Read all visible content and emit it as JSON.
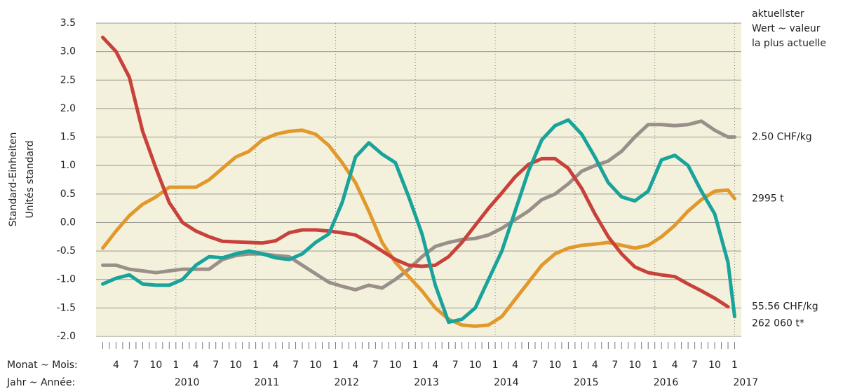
{
  "chart_data": {
    "type": "line",
    "y_axis_label": [
      "Standard-Einheiten",
      "Unités standard"
    ],
    "annotation": [
      "aktuellster",
      "Wert ~ valeur",
      "la plus actuelle"
    ],
    "x_row_labels": [
      "Monat ~ Mois:",
      "Jahr ~ Année:"
    ],
    "ylim": [
      -2.0,
      3.5
    ],
    "yticks": [
      {
        "value": -2,
        "label": "-2.0"
      },
      -1.5,
      {
        "value": -1,
        "label": "-1.0"
      },
      -0.5,
      {
        "value": 0,
        "label": "0.0"
      },
      0.5,
      {
        "value": 1,
        "label": "1.0"
      },
      1.5,
      {
        "value": 2,
        "label": "2.0"
      },
      2.5,
      {
        "value": 3,
        "label": "3.0"
      },
      3.5
    ],
    "grid": true,
    "xlim": [
      "2009-01",
      "2017-02"
    ],
    "xticks": [
      {
        "value": "2009-04",
        "label": "4"
      },
      {
        "value": "2009-07",
        "label": "7"
      },
      {
        "value": "2009-10",
        "label": "10"
      },
      {
        "value": "2010-01",
        "label": "1"
      },
      {
        "value": "2010-04",
        "label": "4"
      },
      {
        "value": "2010-07",
        "label": "7"
      },
      {
        "value": "2010-10",
        "label": "10"
      },
      {
        "value": "2011-01",
        "label": "1"
      },
      {
        "value": "2011-04",
        "label": "4"
      },
      {
        "value": "2011-07",
        "label": "7"
      },
      {
        "value": "2011-10",
        "label": "10"
      },
      {
        "value": "2012-01",
        "label": "1"
      },
      {
        "value": "2012-04",
        "label": "4"
      },
      {
        "value": "2012-07",
        "label": "7"
      },
      {
        "value": "2012-10",
        "label": "10"
      },
      {
        "value": "2013-01",
        "label": "1"
      },
      {
        "value": "2013-04",
        "label": "4"
      },
      {
        "value": "2013-07",
        "label": "7"
      },
      {
        "value": "2013-10",
        "label": "10"
      },
      {
        "value": "2014-01",
        "label": "1"
      },
      {
        "value": "2014-04",
        "label": "4"
      },
      {
        "value": "2014-07",
        "label": "7"
      },
      {
        "value": "2014-10",
        "label": "10"
      },
      {
        "value": "2015-01",
        "label": "1"
      },
      {
        "value": "2015-04",
        "label": "4"
      },
      {
        "value": "2015-07",
        "label": "7"
      },
      {
        "value": "2015-10",
        "label": "10"
      },
      {
        "value": "2016-01",
        "label": "1"
      },
      {
        "value": "2016-04",
        "label": "4"
      },
      {
        "value": "2016-07",
        "label": "7"
      },
      {
        "value": "2016-10",
        "label": "10"
      },
      {
        "value": "2017-01",
        "label": "1"
      }
    ],
    "year_ticks": [
      {
        "value": "2010-01",
        "label": "2010"
      },
      {
        "value": "2011-01",
        "label": "2011"
      },
      {
        "value": "2012-01",
        "label": "2012"
      },
      {
        "value": "2013-01",
        "label": "2013"
      },
      {
        "value": "2014-01",
        "label": "2014"
      },
      {
        "value": "2015-01",
        "label": "2015"
      },
      {
        "value": "2016-01",
        "label": "2016"
      },
      {
        "value": "2017-01",
        "label": "2017"
      }
    ],
    "x": [
      "2009-02",
      "2009-04",
      "2009-06",
      "2009-08",
      "2009-10",
      "2009-12",
      "2010-02",
      "2010-04",
      "2010-06",
      "2010-08",
      "2010-10",
      "2010-12",
      "2011-02",
      "2011-04",
      "2011-06",
      "2011-08",
      "2011-10",
      "2011-12",
      "2012-02",
      "2012-04",
      "2012-06",
      "2012-08",
      "2012-10",
      "2012-12",
      "2013-02",
      "2013-04",
      "2013-06",
      "2013-08",
      "2013-10",
      "2013-12",
      "2014-02",
      "2014-04",
      "2014-06",
      "2014-08",
      "2014-10",
      "2014-12",
      "2015-02",
      "2015-04",
      "2015-06",
      "2015-08",
      "2015-10",
      "2015-12",
      "2016-02",
      "2016-04",
      "2016-06",
      "2016-08",
      "2016-10",
      "2016-12",
      "2017-01"
    ],
    "series": [
      {
        "color": "#9a8f89",
        "end_label": "2.50 CHF/kg",
        "values": [
          -0.75,
          -0.75,
          -0.82,
          -0.85,
          -0.88,
          -0.85,
          -0.82,
          -0.82,
          -0.82,
          -0.65,
          -0.58,
          -0.55,
          -0.55,
          -0.58,
          -0.6,
          -0.75,
          -0.9,
          -1.05,
          -1.12,
          -1.18,
          -1.1,
          -1.15,
          -1.0,
          -0.82,
          -0.6,
          -0.42,
          -0.35,
          -0.3,
          -0.28,
          -0.22,
          -0.1,
          0.05,
          0.2,
          0.4,
          0.5,
          0.68,
          0.9,
          1.0,
          1.08,
          1.25,
          1.5,
          1.72,
          1.72,
          1.7,
          1.72,
          1.78,
          1.62,
          1.5,
          1.5
        ]
      },
      {
        "color": "#e2982a",
        "end_label": "2995 t",
        "values": [
          -0.45,
          -0.15,
          0.12,
          0.32,
          0.45,
          0.62,
          0.62,
          0.62,
          0.75,
          0.95,
          1.15,
          1.25,
          1.45,
          1.55,
          1.6,
          1.62,
          1.55,
          1.35,
          1.05,
          0.7,
          0.2,
          -0.35,
          -0.7,
          -0.95,
          -1.2,
          -1.5,
          -1.7,
          -1.8,
          -1.82,
          -1.8,
          -1.65,
          -1.35,
          -1.05,
          -0.75,
          -0.55,
          -0.45,
          -0.4,
          -0.38,
          -0.35,
          -0.4,
          -0.45,
          -0.4,
          -0.25,
          -0.05,
          0.2,
          0.4,
          0.55,
          0.57,
          0.42
        ]
      },
      {
        "color": "#c8413a",
        "end_label": "55.56 CHF/kg",
        "values": [
          3.25,
          3.0,
          2.55,
          1.6,
          0.95,
          0.35,
          0.0,
          -0.15,
          -0.25,
          -0.33,
          -0.34,
          -0.35,
          -0.36,
          -0.32,
          -0.18,
          -0.13,
          -0.13,
          -0.15,
          -0.18,
          -0.22,
          -0.35,
          -0.5,
          -0.65,
          -0.75,
          -0.77,
          -0.75,
          -0.6,
          -0.35,
          -0.05,
          0.25,
          0.52,
          0.8,
          1.02,
          1.12,
          1.12,
          0.95,
          0.6,
          0.15,
          -0.25,
          -0.55,
          -0.78,
          -0.88,
          -0.92,
          -0.95,
          -1.08,
          -1.2,
          -1.33,
          -1.48,
          null
        ]
      },
      {
        "color": "#1aa39a",
        "end_label": "262 060 t*",
        "values": [
          -1.08,
          -0.98,
          -0.92,
          -1.08,
          -1.1,
          -1.1,
          -1.0,
          -0.75,
          -0.6,
          -0.62,
          -0.55,
          -0.5,
          -0.55,
          -0.62,
          -0.65,
          -0.55,
          -0.35,
          -0.2,
          0.35,
          1.15,
          1.4,
          1.2,
          1.05,
          0.45,
          -0.2,
          -1.1,
          -1.75,
          -1.7,
          -1.5,
          -1.0,
          -0.5,
          0.2,
          0.9,
          1.45,
          1.7,
          1.8,
          1.55,
          1.15,
          0.7,
          0.45,
          0.38,
          0.55,
          1.1,
          1.18,
          1.0,
          0.55,
          0.15,
          -0.7,
          -1.65
        ]
      }
    ]
  }
}
